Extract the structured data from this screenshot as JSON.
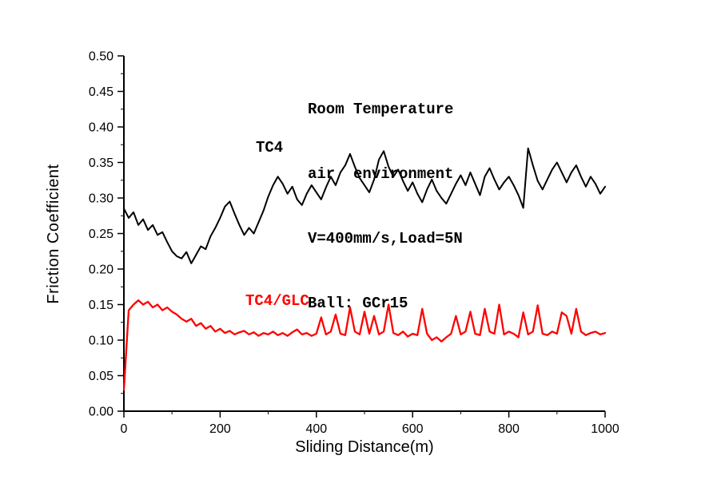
{
  "chart_data": {
    "type": "line",
    "title": "",
    "xlabel": "Sliding Distance(m)",
    "ylabel": "Friction Coefficient",
    "xlim": [
      0,
      1000
    ],
    "ylim": [
      0,
      0.5
    ],
    "grid": false,
    "legend": "inline-labels",
    "x_ticks": [
      0,
      200,
      400,
      600,
      800,
      1000
    ],
    "x_tick_labels": [
      "0",
      "200",
      "400",
      "600",
      "800",
      "1000"
    ],
    "x_minor_step": 100,
    "y_ticks": [
      0,
      0.05,
      0.1,
      0.15,
      0.2,
      0.25,
      0.3,
      0.35,
      0.4,
      0.45,
      0.5
    ],
    "y_tick_labels": [
      "0.00",
      "0.05",
      "0.10",
      "0.15",
      "0.20",
      "0.25",
      "0.30",
      "0.35",
      "0.40",
      "0.45",
      "0.50"
    ],
    "y_minor_step": 0.025,
    "annotations": [
      "Room Temperature",
      "air  environment",
      "V=400mm/s,Load=5N",
      "Ball: GCr15"
    ],
    "series": [
      {
        "name": "TC4",
        "color": "#000000",
        "stroke_width": 2,
        "x_start": 0,
        "x_step": 10,
        "values": [
          0.285,
          0.272,
          0.28,
          0.262,
          0.27,
          0.255,
          0.262,
          0.248,
          0.252,
          0.238,
          0.225,
          0.218,
          0.215,
          0.224,
          0.208,
          0.22,
          0.232,
          0.228,
          0.246,
          0.258,
          0.272,
          0.288,
          0.295,
          0.278,
          0.262,
          0.248,
          0.258,
          0.25,
          0.266,
          0.282,
          0.302,
          0.318,
          0.33,
          0.32,
          0.306,
          0.316,
          0.298,
          0.29,
          0.306,
          0.318,
          0.308,
          0.298,
          0.315,
          0.33,
          0.318,
          0.336,
          0.346,
          0.362,
          0.344,
          0.328,
          0.318,
          0.308,
          0.326,
          0.354,
          0.366,
          0.344,
          0.33,
          0.34,
          0.324,
          0.31,
          0.322,
          0.306,
          0.294,
          0.312,
          0.326,
          0.31,
          0.3,
          0.292,
          0.306,
          0.32,
          0.332,
          0.318,
          0.336,
          0.32,
          0.304,
          0.33,
          0.342,
          0.326,
          0.312,
          0.322,
          0.33,
          0.318,
          0.304,
          0.286,
          0.37,
          0.346,
          0.324,
          0.312,
          0.326,
          0.34,
          0.35,
          0.336,
          0.322,
          0.336,
          0.346,
          0.33,
          0.316,
          0.33,
          0.32,
          0.306,
          0.316
        ]
      },
      {
        "name": "TC4/GLC",
        "color": "#ff0000",
        "stroke_width": 2.3,
        "x_start": 0,
        "x_step": 10,
        "values": [
          0.03,
          0.142,
          0.15,
          0.156,
          0.15,
          0.154,
          0.146,
          0.15,
          0.142,
          0.146,
          0.14,
          0.136,
          0.13,
          0.126,
          0.13,
          0.12,
          0.124,
          0.116,
          0.12,
          0.112,
          0.116,
          0.11,
          0.113,
          0.108,
          0.111,
          0.113,
          0.108,
          0.111,
          0.106,
          0.11,
          0.108,
          0.112,
          0.107,
          0.11,
          0.106,
          0.111,
          0.115,
          0.108,
          0.11,
          0.106,
          0.109,
          0.132,
          0.108,
          0.112,
          0.136,
          0.109,
          0.107,
          0.146,
          0.112,
          0.108,
          0.14,
          0.109,
          0.134,
          0.108,
          0.112,
          0.15,
          0.11,
          0.107,
          0.112,
          0.105,
          0.109,
          0.107,
          0.144,
          0.109,
          0.1,
          0.104,
          0.098,
          0.104,
          0.109,
          0.134,
          0.108,
          0.112,
          0.14,
          0.109,
          0.107,
          0.144,
          0.112,
          0.109,
          0.15,
          0.108,
          0.112,
          0.109,
          0.104,
          0.139,
          0.108,
          0.112,
          0.149,
          0.109,
          0.107,
          0.112,
          0.109,
          0.139,
          0.134,
          0.109,
          0.144,
          0.112,
          0.107,
          0.11,
          0.112,
          0.108,
          0.11
        ]
      }
    ]
  }
}
